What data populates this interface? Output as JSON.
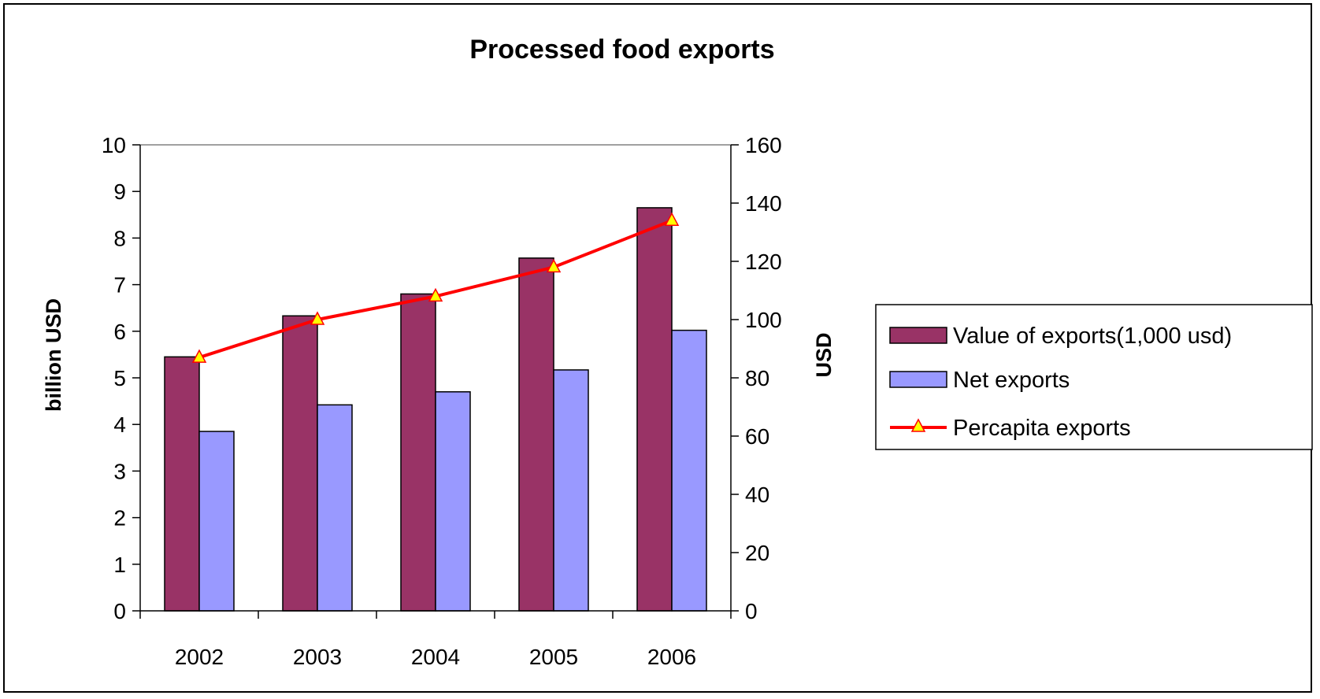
{
  "chart_data": {
    "type": "bar",
    "title": "Processed food exports",
    "categories": [
      "2002",
      "2003",
      "2004",
      "2005",
      "2006"
    ],
    "ylabel": "billion USD",
    "y2label": "USD",
    "ylim": [
      0,
      10
    ],
    "y2lim": [
      0,
      160
    ],
    "yticks": [
      "0",
      "1",
      "2",
      "3",
      "4",
      "5",
      "6",
      "7",
      "8",
      "9",
      "10"
    ],
    "y2ticks": [
      "0",
      "20",
      "40",
      "60",
      "80",
      "100",
      "120",
      "140",
      "160"
    ],
    "grid": "horizontal at top only",
    "legend_position": "right",
    "series": [
      {
        "name": "Value of exports(1,000 usd)",
        "type": "bar",
        "axis": "left",
        "color": "#993366",
        "values": [
          5.45,
          6.33,
          6.8,
          7.57,
          8.65
        ]
      },
      {
        "name": "Net exports",
        "type": "bar",
        "axis": "left",
        "color": "#9999FF",
        "values": [
          3.85,
          4.42,
          4.7,
          5.17,
          6.02
        ]
      },
      {
        "name": "Percapita exports",
        "type": "line",
        "axis": "right",
        "color": "#FF0000",
        "marker": "triangle",
        "marker_color": "#FFFF00",
        "values": [
          87,
          100,
          108,
          118,
          134
        ]
      }
    ]
  }
}
